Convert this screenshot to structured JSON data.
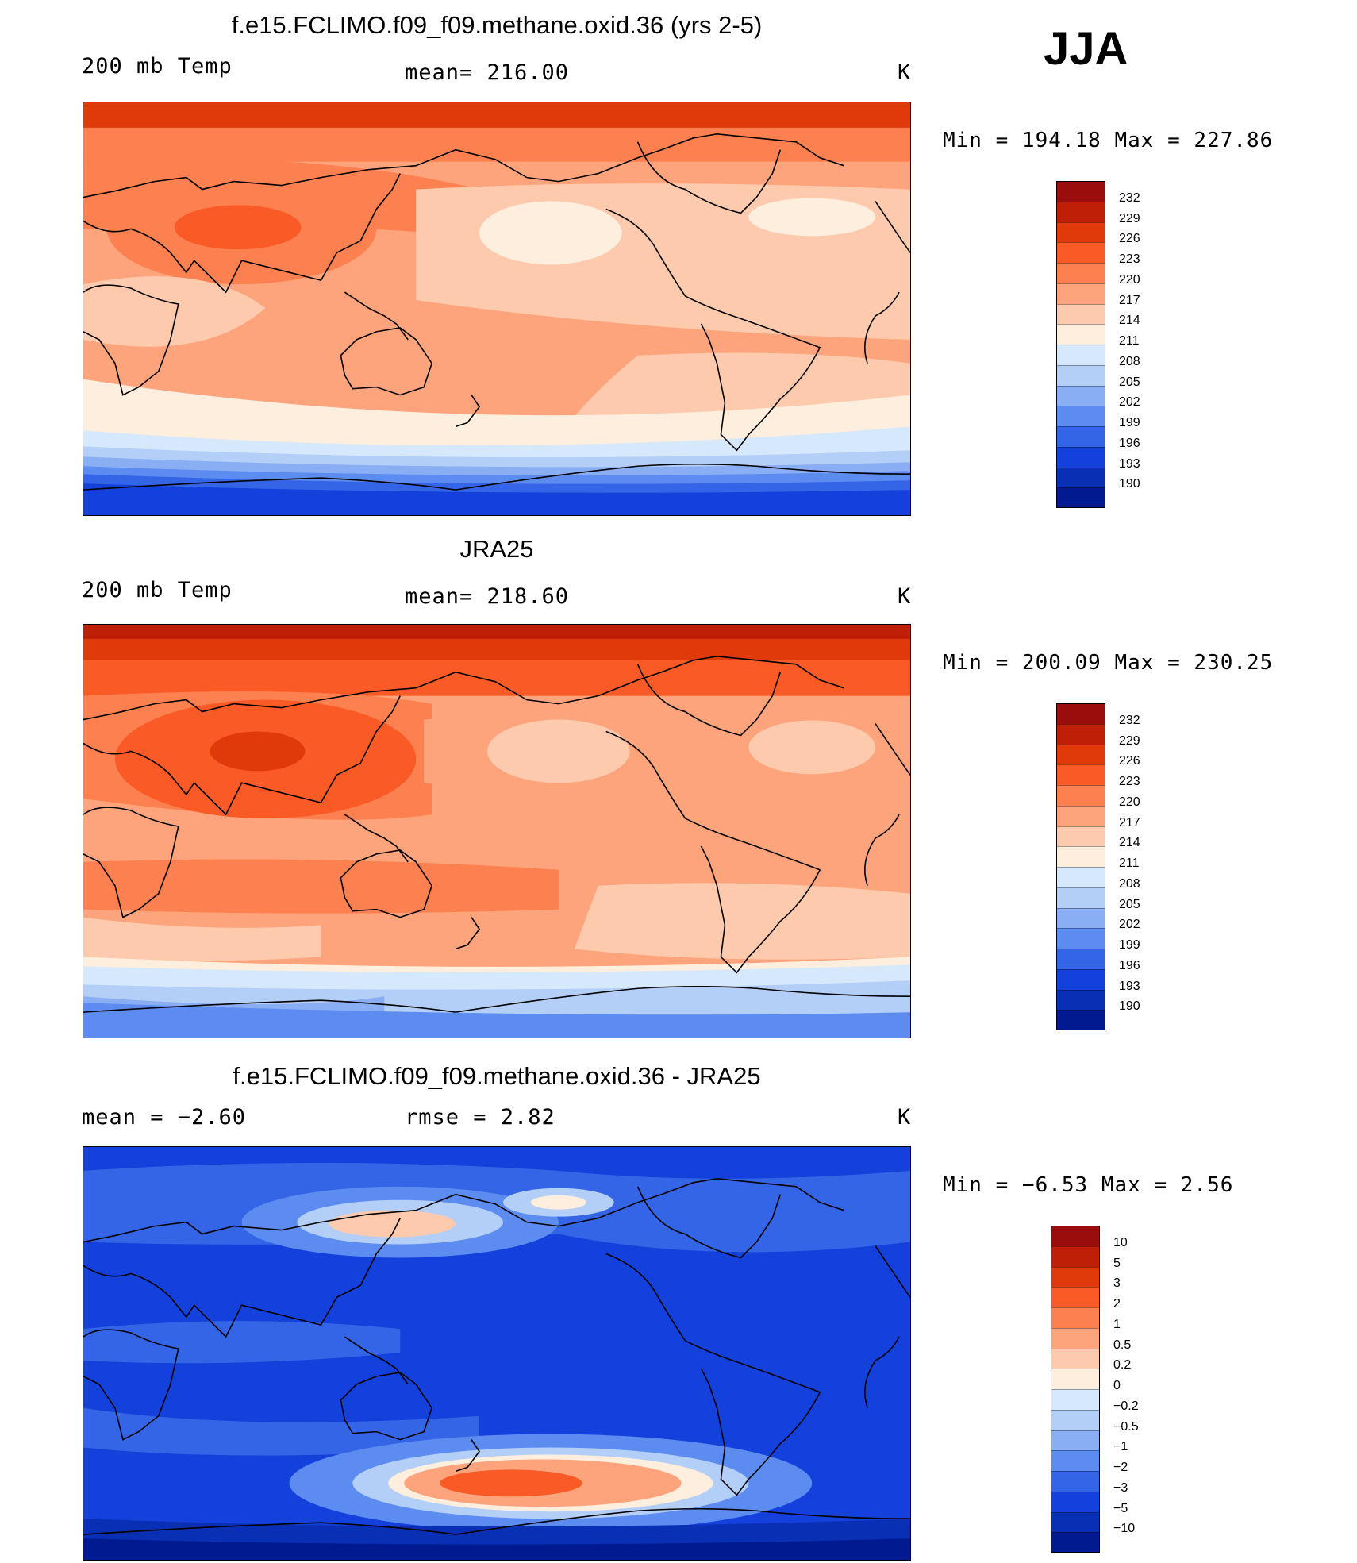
{
  "season": "JJA",
  "palette_temp": [
    "#9b0d0d",
    "#c01f07",
    "#e03a0a",
    "#fa5a25",
    "#fc8050",
    "#fda47c",
    "#fdcaad",
    "#fdeede",
    "#d6e8fb",
    "#b3cff7",
    "#8aaef3",
    "#5d8cf0",
    "#3465e6",
    "#1441db",
    "#092fb4",
    "#021a8f"
  ],
  "palette_diff": [
    "#9b0d0d",
    "#c01f07",
    "#e03a0a",
    "#fa5a25",
    "#fc8050",
    "#fda47c",
    "#fdcaad",
    "#fdeede",
    "#d6e8fb",
    "#b3cff7",
    "#8aaef3",
    "#5d8cf0",
    "#3465e6",
    "#1441db",
    "#092fb4",
    "#021a8f"
  ],
  "panels": [
    {
      "title": "f.e15.FCLIMO.f09_f09.methane.oxid.36 (yrs 2-5)",
      "left_label": "200 mb Temp",
      "mid_label": "mean=  216.00",
      "units": "K",
      "minmax": "Min  =  194.18  Max  =  227.86",
      "colorbar_labels": [
        "232",
        "229",
        "226",
        "223",
        "220",
        "217",
        "214",
        "211",
        "208",
        "205",
        "202",
        "199",
        "196",
        "193",
        "190"
      ]
    },
    {
      "title": "JRA25",
      "left_label": "200 mb Temp",
      "mid_label": "mean=  218.60",
      "units": "K",
      "minmax": "Min  =  200.09  Max  =  230.25",
      "colorbar_labels": [
        "232",
        "229",
        "226",
        "223",
        "220",
        "217",
        "214",
        "211",
        "208",
        "205",
        "202",
        "199",
        "196",
        "193",
        "190"
      ]
    },
    {
      "title": "f.e15.FCLIMO.f09_f09.methane.oxid.36 - JRA25",
      "left_label": "mean =    −2.60",
      "mid_label": "rmse =     2.82",
      "units": "K",
      "minmax": "Min  =    −6.53  Max  =     2.56",
      "colorbar_labels": [
        "10",
        "5",
        "3",
        "2",
        "1",
        "0.5",
        "0.2",
        "0",
        "−0.2",
        "−0.5",
        "−1",
        "−2",
        "−3",
        "−5",
        "−10"
      ]
    }
  ]
}
